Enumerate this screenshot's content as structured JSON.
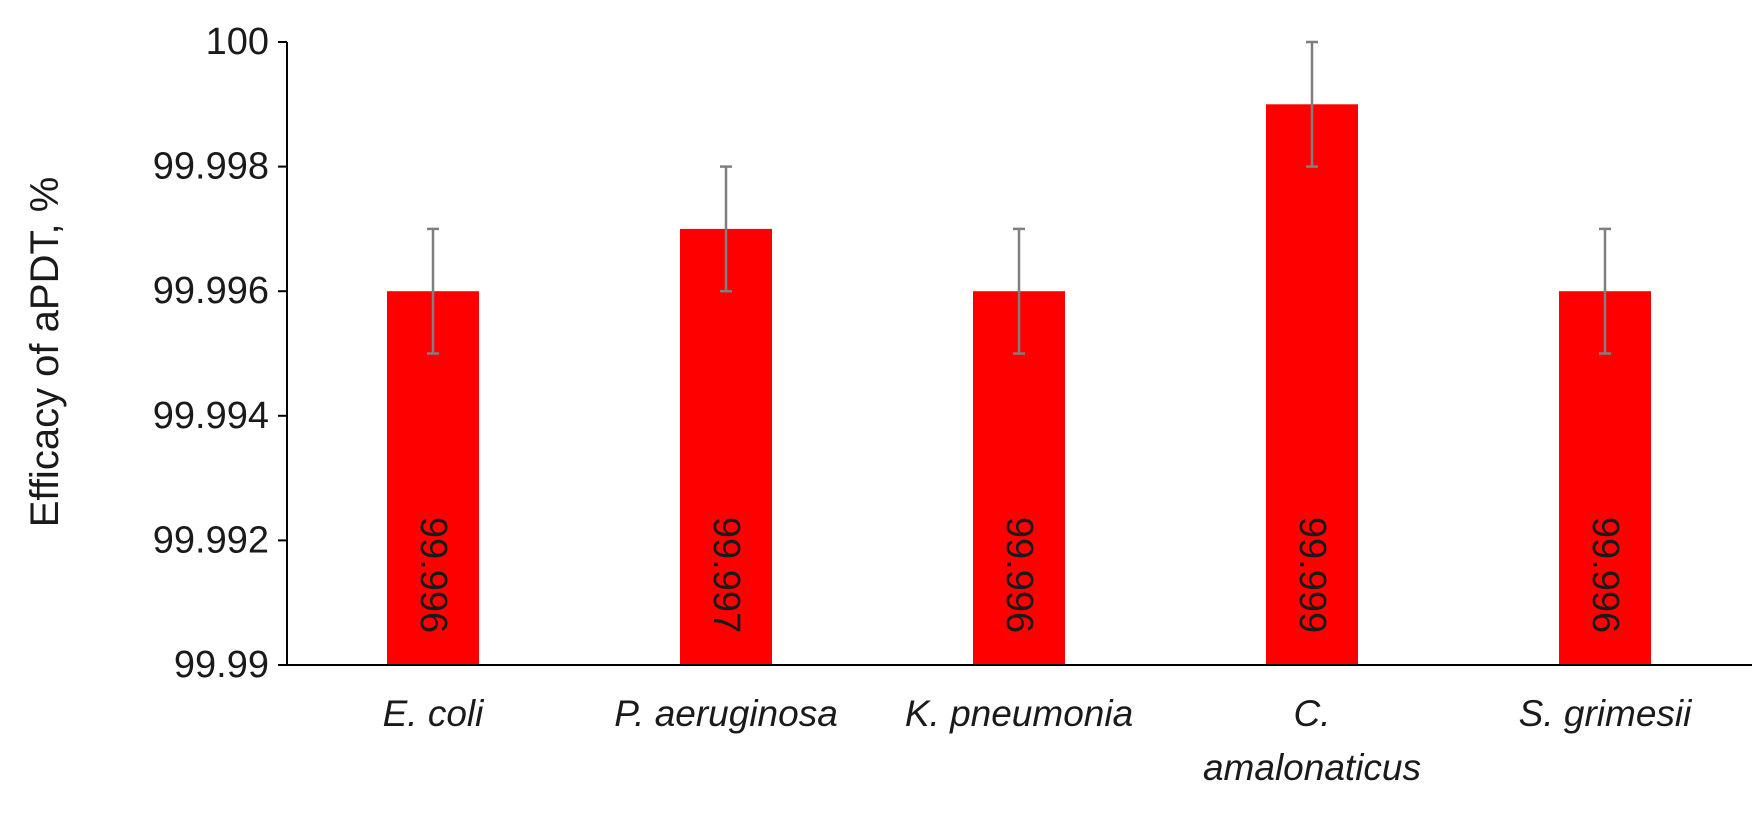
{
  "chart_data": {
    "type": "bar",
    "title": "",
    "xlabel": "",
    "ylabel": "Efficacy of aPDT, %",
    "ylim": [
      99.99,
      100
    ],
    "yticks": [
      "99.99",
      "99.992",
      "99.994",
      "99.996",
      "99.998",
      "100"
    ],
    "grid": false,
    "legend": "none",
    "categories": [
      [
        "E. coli"
      ],
      [
        "P. aeruginosa"
      ],
      [
        "K. pneumonia"
      ],
      [
        "C.",
        "amalonaticus"
      ],
      [
        "S. grimesii"
      ]
    ],
    "values": [
      99.996,
      99.997,
      99.996,
      99.999,
      99.996
    ],
    "data_labels": [
      "99.996",
      "99.997",
      "99.996",
      "99.999",
      "99.996"
    ],
    "error": [
      0.001,
      0.001,
      0.001,
      0.001,
      0.001
    ],
    "colors": {
      "bar": "#ff0000",
      "error_bar": "#7f7f7f",
      "axis": "#000000",
      "text": "#1a1a1a"
    }
  }
}
